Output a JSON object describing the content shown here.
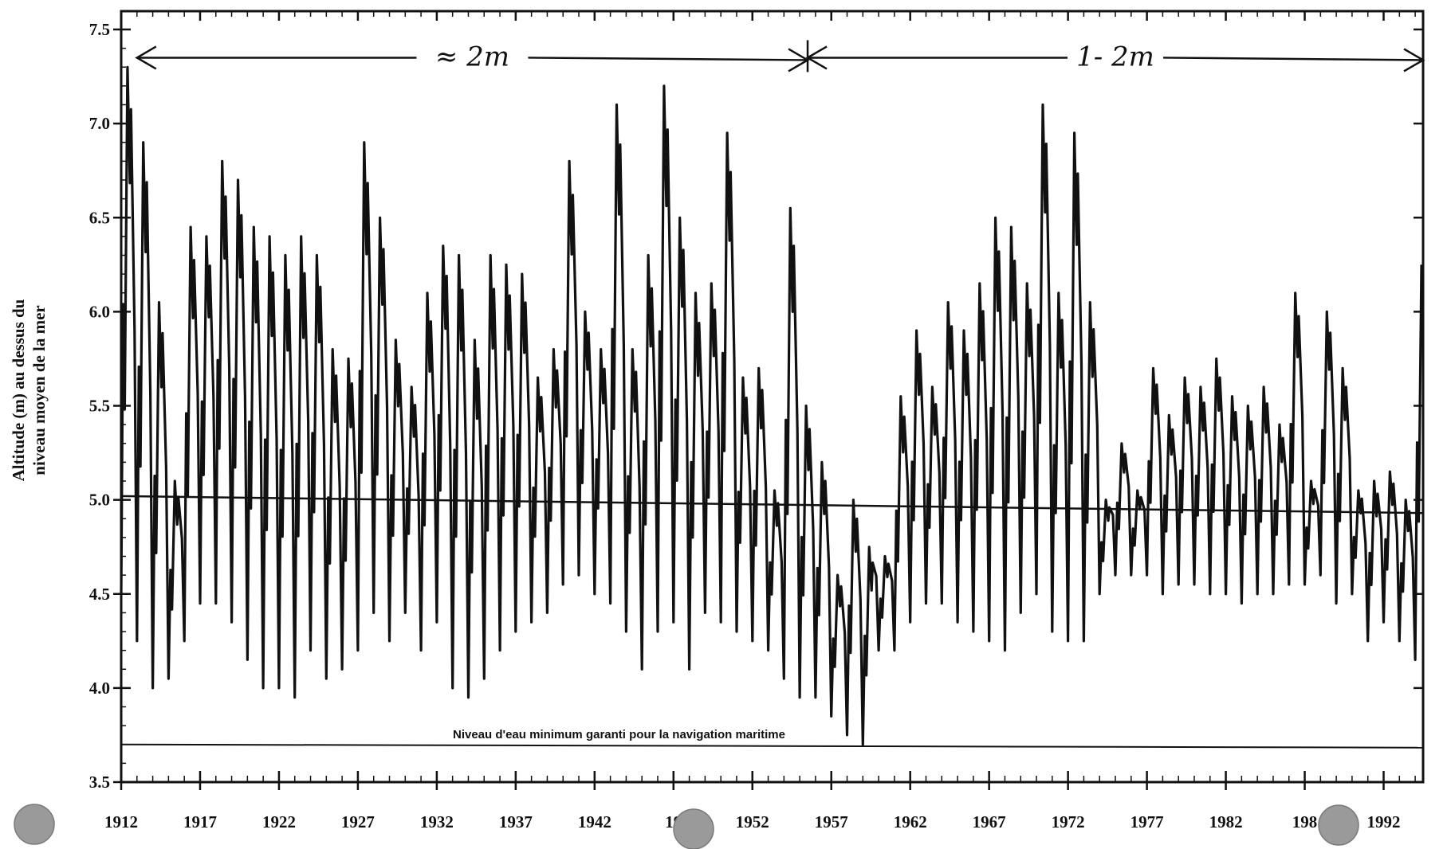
{
  "chart_data": {
    "type": "line",
    "title": "",
    "ylabel_line1": "Altitude (m) au dessus du",
    "ylabel_line2": "niveau moyen de la mer",
    "xlabel": "",
    "xlim": [
      1912,
      1994.5
    ],
    "ylim": [
      3.5,
      7.5
    ],
    "y_ticks": [
      "3.5",
      "4.0",
      "4.5",
      "5.0",
      "5.5",
      "6.0",
      "6.5",
      "7.0",
      "7.5"
    ],
    "x_ticks": [
      "1912",
      "1917",
      "1922",
      "1927",
      "1932",
      "1937",
      "1942",
      "19",
      "1952",
      "1957",
      "1962",
      "1967",
      "1972",
      "1977",
      "1982",
      "198",
      "1992"
    ],
    "grid": false,
    "minimum_level": {
      "value": 3.7,
      "label": "Niveau d'eau minimum garanti pour la navigation maritime"
    },
    "trend_line": {
      "x": [
        1912,
        1994.5
      ],
      "y": [
        5.02,
        4.93
      ]
    },
    "range_annotations": [
      {
        "label": "≈ 2m",
        "x_start": 1913,
        "x_end": 1955.5,
        "y": 7.35
      },
      {
        "label": "1- 2m",
        "x_start": 1955.5,
        "x_end": 1994.5,
        "y": 7.35
      }
    ],
    "series": [
      {
        "type": "line",
        "annual_max": [
          7.3,
          6.9,
          6.05,
          5.1,
          6.45,
          6.4,
          6.8,
          6.7,
          6.45,
          6.4,
          6.3,
          6.4,
          6.3,
          5.8,
          5.75,
          6.9,
          6.5,
          5.85,
          5.6,
          6.1,
          6.35,
          6.3,
          5.85,
          6.3,
          6.25,
          6.2,
          5.65,
          5.8,
          6.8,
          6.0,
          5.8,
          7.1,
          5.8,
          6.3,
          7.2,
          6.5,
          6.1,
          6.15,
          6.95,
          5.65,
          5.7,
          5.05,
          6.55,
          5.5,
          5.2,
          4.6,
          5.0,
          4.75,
          4.7,
          5.55,
          5.9,
          5.6,
          6.05,
          5.9,
          6.15,
          6.5,
          6.45,
          6.15,
          7.1,
          6.1,
          6.95,
          6.05,
          5.0,
          5.3,
          5.05,
          5.7,
          5.45,
          5.65,
          5.6,
          5.75,
          5.55,
          5.5,
          5.6,
          5.4,
          6.1,
          5.1,
          6.0,
          5.7,
          5.05,
          5.1,
          5.15,
          5.0,
          6.25,
          6.35
        ],
        "annual_min": [
          4.5,
          4.25,
          4.0,
          4.05,
          4.25,
          4.45,
          4.45,
          4.35,
          4.15,
          4.0,
          4.0,
          3.95,
          4.2,
          4.05,
          4.1,
          4.2,
          4.4,
          4.25,
          4.4,
          4.2,
          4.35,
          4.0,
          3.95,
          4.05,
          4.2,
          4.3,
          4.35,
          4.4,
          4.55,
          4.6,
          4.5,
          4.45,
          4.3,
          4.1,
          4.3,
          4.35,
          4.1,
          4.4,
          4.35,
          4.3,
          4.25,
          4.2,
          4.05,
          3.95,
          3.95,
          3.85,
          3.75,
          3.7,
          4.2,
          4.2,
          4.35,
          4.45,
          4.45,
          4.35,
          4.3,
          4.25,
          4.2,
          4.4,
          4.5,
          4.3,
          4.25,
          4.25,
          4.5,
          4.6,
          4.6,
          4.6,
          4.5,
          4.55,
          4.55,
          4.5,
          4.5,
          4.45,
          4.5,
          4.5,
          4.55,
          4.55,
          4.6,
          4.45,
          4.5,
          4.25,
          4.35,
          4.25,
          4.15,
          4.4
        ]
      }
    ]
  }
}
